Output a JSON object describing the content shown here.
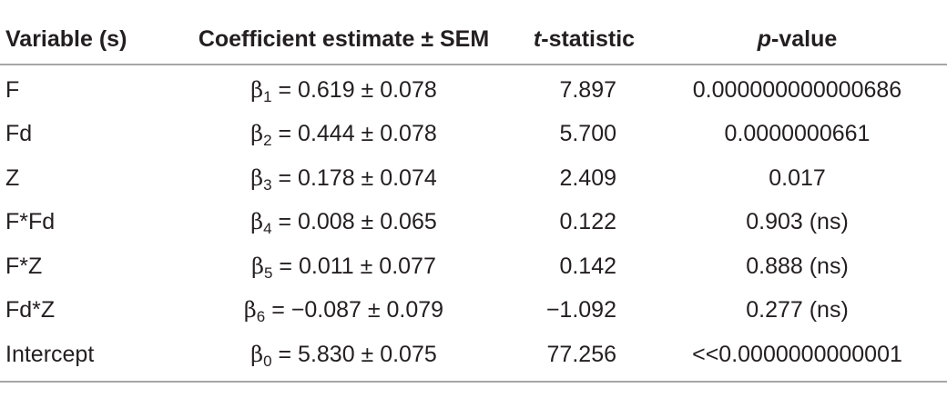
{
  "headers": {
    "variable": "Variable (s)",
    "coefficient": "Coefficient estimate ± SEM",
    "t_stat_italic": "t",
    "t_stat_rest": "-statistic",
    "p_value_italic": "p",
    "p_value_rest": "-value"
  },
  "rows": [
    {
      "variable": "F",
      "beta_symbol": "β",
      "beta_sub": "1",
      "coef_rest": " = 0.619 ± 0.078",
      "t": "7.897",
      "p": "0.000000000000686"
    },
    {
      "variable": "Fd",
      "beta_symbol": "β",
      "beta_sub": "2",
      "coef_rest": " = 0.444 ± 0.078",
      "t": "5.700",
      "p": "0.0000000661"
    },
    {
      "variable": "Z",
      "beta_symbol": "β",
      "beta_sub": "3",
      "coef_rest": " = 0.178 ± 0.074",
      "t": "2.409",
      "p": "0.017"
    },
    {
      "variable": "F*Fd",
      "beta_symbol": "β",
      "beta_sub": "4",
      "coef_rest": " = 0.008 ± 0.065",
      "t": "0.122",
      "p": "0.903 (ns)"
    },
    {
      "variable": "F*Z",
      "beta_symbol": "β",
      "beta_sub": "5",
      "coef_rest": " = 0.011 ± 0.077",
      "t": "0.142",
      "p": "0.888 (ns)"
    },
    {
      "variable": "Fd*Z",
      "beta_symbol": "β",
      "beta_sub": "6",
      "coef_rest": " = −0.087 ± 0.079",
      "t": "−1.092",
      "p": "0.277 (ns)"
    },
    {
      "variable": "Intercept",
      "beta_symbol": "β",
      "beta_sub": "0",
      "coef_rest": " = 5.830 ± 0.075",
      "t": "77.256",
      "p": "<<0.0000000000001"
    }
  ]
}
